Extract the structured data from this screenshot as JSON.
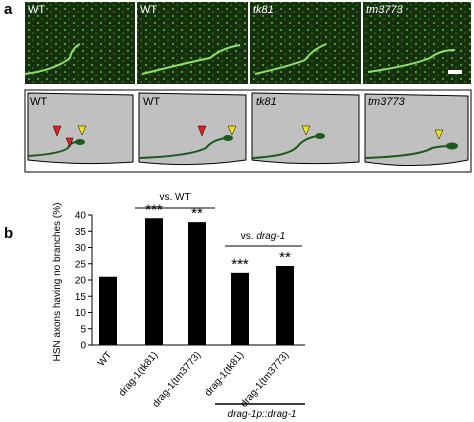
{
  "panel_a": {
    "letter": "a",
    "micrographs": [
      "WT",
      "WT",
      "tk81",
      "tm3773"
    ],
    "diagrams": [
      "WT",
      "WT",
      "tk81",
      "tm3773"
    ]
  },
  "chart_data": {
    "type": "bar",
    "letter": "b",
    "y_label": "HSN axons having no branches (%)",
    "categories": [
      "WT",
      "drag-1(tk81)",
      "drag-1(tm3773)",
      "drag-1(tk81)",
      "drag-1(tm3773)"
    ],
    "values": [
      21,
      39,
      37.8,
      22.2,
      24.3
    ],
    "color": "#000000",
    "ylim": [
      0,
      40
    ],
    "yticks": [
      0,
      5,
      10,
      15,
      20,
      25,
      30,
      35,
      40
    ],
    "significance": [
      "",
      "***",
      "**",
      "***",
      "**"
    ],
    "comparisons": [
      {
        "prefix": "vs.",
        "gene": "WT"
      },
      {
        "prefix": "vs.",
        "gene": "drag-1"
      }
    ],
    "rescue_label": "drag-1p::drag-1"
  }
}
